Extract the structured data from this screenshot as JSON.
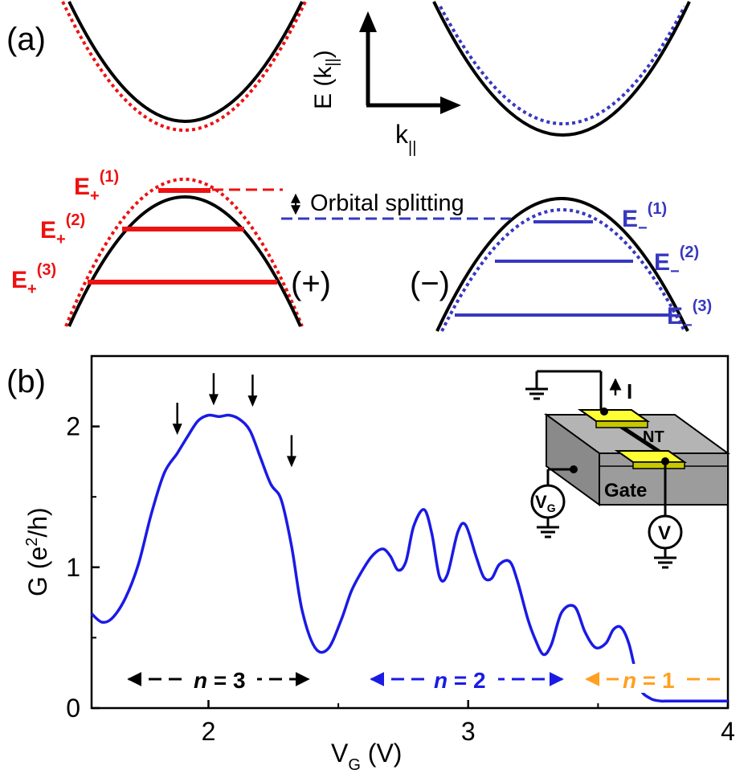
{
  "panel_a": {
    "label": "(a)",
    "axis_y": "E (k",
    "axis_y_sub": "||",
    "axis_y_close": ")",
    "axis_x": "k",
    "axis_x_sub": "||",
    "annotation": "Orbital splitting",
    "plus_label": "(+)",
    "minus_label": "(−)",
    "levels_plus": [
      {
        "base": "E",
        "sub": "+",
        "sup": "(1)"
      },
      {
        "base": "E",
        "sub": "+",
        "sup": "(2)"
      },
      {
        "base": "E",
        "sub": "+",
        "sup": "(3)"
      }
    ],
    "levels_minus": [
      {
        "base": "E",
        "sub": "−",
        "sup": "(1)"
      },
      {
        "base": "E",
        "sub": "−",
        "sup": "(2)"
      },
      {
        "base": "E",
        "sub": "−",
        "sup": "(3)"
      }
    ],
    "colors": {
      "plus": "#ee1111",
      "minus": "#3838c0",
      "solid": "#000000"
    }
  },
  "panel_b": {
    "label": "(b)",
    "inset": {
      "current": "I",
      "nt": "NT",
      "gate": "Gate",
      "vg_base": "V",
      "vg_sub": "G",
      "voltmeter": "V"
    },
    "bands": [
      {
        "text_n": "n",
        "text_rest": " = 3",
        "color": "#000000"
      },
      {
        "text_n": "n",
        "text_rest": " = 2",
        "color": "#1a1ae6"
      },
      {
        "text_n": "n",
        "text_rest": " = 1",
        "color": "#ffa020"
      }
    ]
  },
  "chart_data": {
    "type": "line",
    "xlabel": "V",
    "xlabel_sub": "G",
    "xlabel_unit": " (V)",
    "ylabel": "G (e",
    "ylabel_sup": "2",
    "ylabel_unit": "/h)",
    "xlim": [
      1.55,
      4.0
    ],
    "ylim": [
      0,
      2.5
    ],
    "xticks": [
      2,
      3,
      4
    ],
    "yticks": [
      0,
      1,
      2
    ],
    "xtick_labels": [
      "2",
      "3",
      "4"
    ],
    "ytick_labels": [
      "0",
      "1",
      "2"
    ],
    "line_color": "#1a1ae6",
    "series": [
      {
        "x": [
          1.55,
          1.59,
          1.63,
          1.68,
          1.73,
          1.78,
          1.83,
          1.88,
          1.92,
          1.96,
          2.0,
          2.04,
          2.08,
          2.12,
          2.16,
          2.2,
          2.24,
          2.28,
          2.32,
          2.36,
          2.41,
          2.46,
          2.51,
          2.55,
          2.59,
          2.63,
          2.67,
          2.7,
          2.73,
          2.76,
          2.79,
          2.83,
          2.86,
          2.89,
          2.92,
          2.96,
          2.99,
          3.03,
          3.06,
          3.09,
          3.12,
          3.16,
          3.19,
          3.23,
          3.26,
          3.29,
          3.32,
          3.36,
          3.41,
          3.45,
          3.49,
          3.53,
          3.56,
          3.59,
          3.62,
          3.66,
          3.7,
          3.74,
          3.76,
          3.8,
          3.83,
          3.86,
          3.9,
          3.95,
          4.0
        ],
        "y": [
          0.67,
          0.61,
          0.64,
          0.78,
          1.02,
          1.38,
          1.67,
          1.81,
          1.93,
          2.04,
          2.08,
          2.07,
          2.08,
          2.05,
          1.97,
          1.78,
          1.59,
          1.48,
          1.15,
          0.7,
          0.43,
          0.42,
          0.62,
          0.83,
          0.97,
          1.08,
          1.13,
          1.08,
          0.98,
          1.04,
          1.29,
          1.41,
          1.24,
          0.93,
          0.95,
          1.25,
          1.3,
          1.08,
          0.93,
          0.92,
          1.02,
          1.04,
          0.9,
          0.63,
          0.48,
          0.38,
          0.45,
          0.68,
          0.72,
          0.54,
          0.43,
          0.46,
          0.56,
          0.57,
          0.45,
          0.15,
          0.07,
          0.05,
          0.05,
          0.05,
          0.05,
          0.05,
          0.05,
          0.05,
          0.05
        ]
      }
    ],
    "arrows_x": [
      1.88,
      2.02,
      2.17,
      2.32
    ],
    "arrows_y_tip": [
      1.94,
      2.15,
      2.14,
      1.71
    ],
    "band_ranges": [
      [
        1.66,
        2.42
      ],
      [
        2.62,
        3.38
      ],
      [
        3.46,
        4.0
      ]
    ]
  }
}
